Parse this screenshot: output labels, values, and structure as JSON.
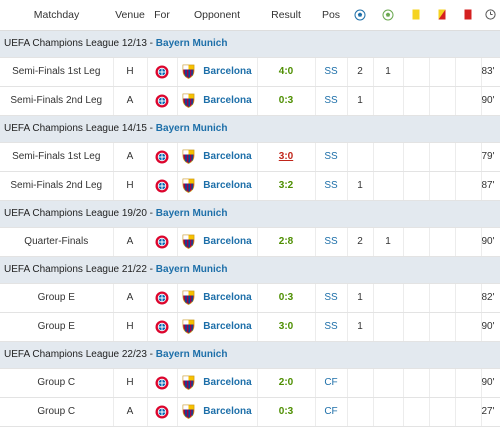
{
  "headers": {
    "matchday": "Matchday",
    "venue": "Venue",
    "for": "For",
    "opponent": "Opponent",
    "result": "Result",
    "pos": "Pos"
  },
  "header_icons": [
    "goal-ball-icon",
    "assist-ball-icon",
    "yellow-card-icon",
    "second-yellow-card-icon",
    "red-card-icon",
    "minutes-clock-icon"
  ],
  "colors": {
    "section_bg": "#e3e9ef",
    "link": "#1d6fa9",
    "win": "#4d8e00",
    "loss": "#c0251a",
    "yellow": "#f5d320",
    "red": "#d42020"
  },
  "sections": [
    {
      "competition": "UEFA Champions League 12/13",
      "club": "Bayern Munich",
      "rows": [
        {
          "matchday": "Semi-Finals 1st Leg",
          "venue": "H",
          "opponent": "Barcelona",
          "result": "4:0",
          "outcome": "win",
          "pos": "SS",
          "goals": "2",
          "assists": "1",
          "minutes": "83'"
        },
        {
          "matchday": "Semi-Finals 2nd Leg",
          "venue": "A",
          "opponent": "Barcelona",
          "result": "0:3",
          "outcome": "win",
          "pos": "SS",
          "goals": "1",
          "assists": "",
          "minutes": "90'"
        }
      ]
    },
    {
      "competition": "UEFA Champions League 14/15",
      "club": "Bayern Munich",
      "rows": [
        {
          "matchday": "Semi-Finals 1st Leg",
          "venue": "A",
          "opponent": "Barcelona",
          "result": "3:0",
          "outcome": "loss",
          "pos": "SS",
          "goals": "",
          "assists": "",
          "minutes": "79'"
        },
        {
          "matchday": "Semi-Finals 2nd Leg",
          "venue": "H",
          "opponent": "Barcelona",
          "result": "3:2",
          "outcome": "win",
          "pos": "SS",
          "goals": "1",
          "assists": "",
          "minutes": "87'"
        }
      ]
    },
    {
      "competition": "UEFA Champions League 19/20",
      "club": "Bayern Munich",
      "rows": [
        {
          "matchday": "Quarter-Finals",
          "venue": "A",
          "opponent": "Barcelona",
          "result": "2:8",
          "outcome": "win",
          "pos": "SS",
          "goals": "2",
          "assists": "1",
          "minutes": "90'"
        }
      ]
    },
    {
      "competition": "UEFA Champions League 21/22",
      "club": "Bayern Munich",
      "rows": [
        {
          "matchday": "Group E",
          "venue": "A",
          "opponent": "Barcelona",
          "result": "0:3",
          "outcome": "win",
          "pos": "SS",
          "goals": "1",
          "assists": "",
          "minutes": "82'"
        },
        {
          "matchday": "Group E",
          "venue": "H",
          "opponent": "Barcelona",
          "result": "3:0",
          "outcome": "win",
          "pos": "SS",
          "goals": "1",
          "assists": "",
          "minutes": "90'"
        }
      ]
    },
    {
      "competition": "UEFA Champions League 22/23",
      "club": "Bayern Munich",
      "rows": [
        {
          "matchday": "Group C",
          "venue": "H",
          "opponent": "Barcelona",
          "result": "2:0",
          "outcome": "win",
          "pos": "CF",
          "goals": "",
          "assists": "",
          "minutes": "90'"
        },
        {
          "matchday": "Group C",
          "venue": "A",
          "opponent": "Barcelona",
          "result": "0:3",
          "outcome": "win",
          "pos": "CF",
          "goals": "",
          "assists": "",
          "minutes": "27'"
        }
      ]
    }
  ]
}
